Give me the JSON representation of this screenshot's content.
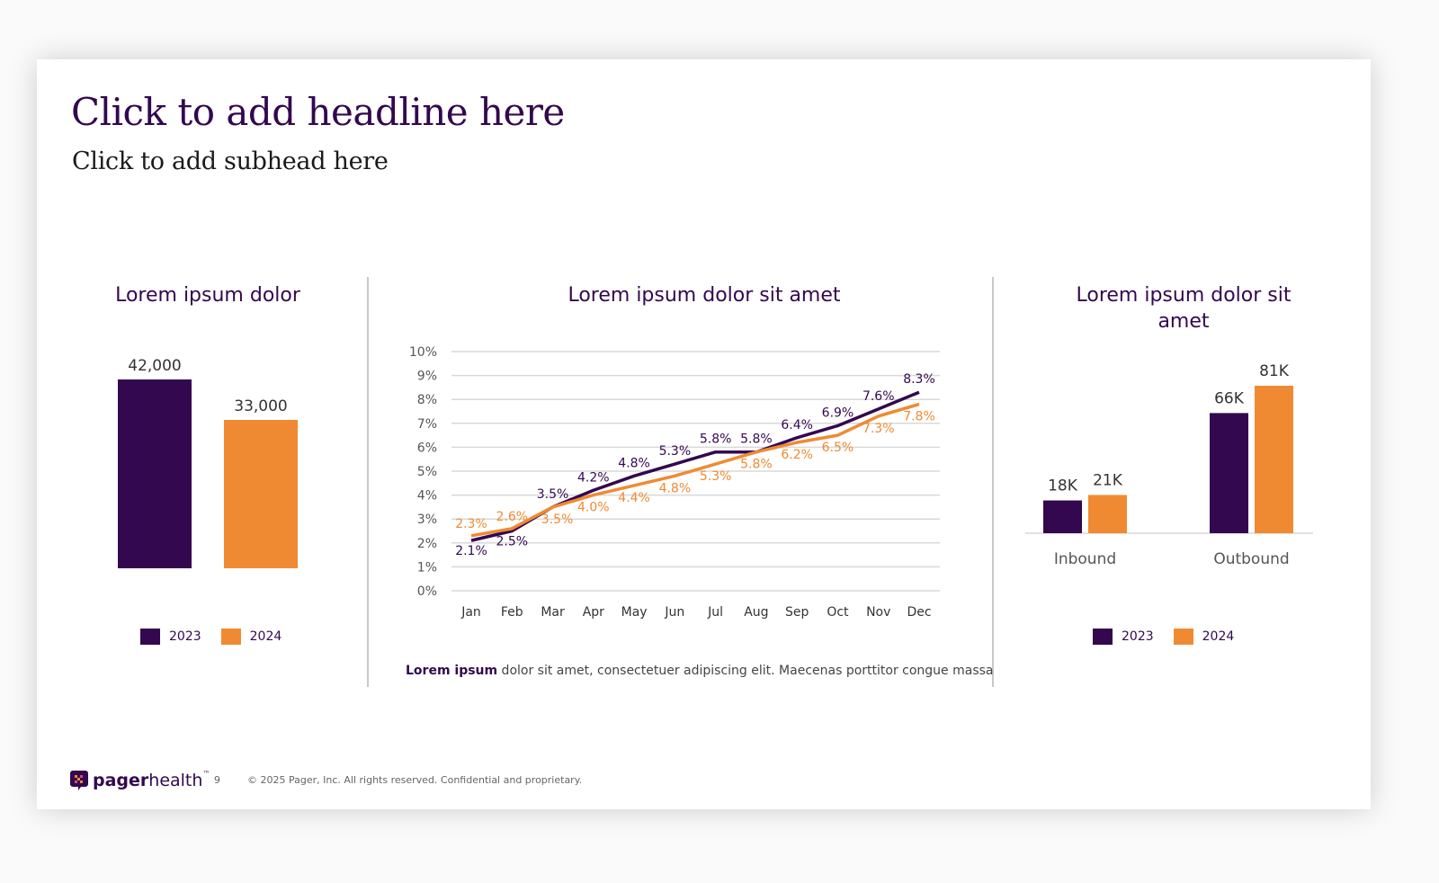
{
  "headline": "Click to add headline here",
  "subhead": "Click to add subhead here",
  "colors": {
    "series_2023": "#33084f",
    "series_2024": "#f08a32",
    "title": "#33084f"
  },
  "footer": {
    "logo_text_bold": "pager",
    "logo_text_light": "health",
    "logo_tm": "™",
    "page_number": "9",
    "copyright": "© 2025 Pager, Inc. All rights reserved. Confidential and proprietary."
  },
  "chart_data": [
    {
      "type": "bar",
      "title": "Lorem ipsum dolor",
      "categories": [
        "2023",
        "2024"
      ],
      "values": [
        42000,
        33000
      ],
      "data_labels": [
        "42,000",
        "33,000"
      ],
      "legend": [
        "2023",
        "2024"
      ],
      "legend_position": "bottom"
    },
    {
      "type": "line",
      "title": "Lorem ipsum dolor sit amet",
      "categories": [
        "Jan",
        "Feb",
        "Mar",
        "Apr",
        "May",
        "Jun",
        "Jul",
        "Aug",
        "Sep",
        "Oct",
        "Nov",
        "Dec"
      ],
      "ylim": [
        0,
        10
      ],
      "yticks": [
        "0%",
        "1%",
        "2%",
        "3%",
        "4%",
        "5%",
        "6%",
        "7%",
        "8%",
        "9%",
        "10%"
      ],
      "grid": true,
      "series": [
        {
          "values": [
            2.1,
            2.5,
            3.5,
            4.2,
            4.8,
            5.3,
            5.8,
            5.8,
            6.4,
            6.9,
            7.6,
            8.3
          ],
          "labels": [
            "2.1%",
            "2.5%",
            "3.5%",
            "4.2%",
            "4.8%",
            "5.3%",
            "5.8%",
            "5.8%",
            "6.4%",
            "6.9%",
            "7.6%",
            "8.3%"
          ]
        },
        {
          "values": [
            2.3,
            2.6,
            3.5,
            4.0,
            4.4,
            4.8,
            5.3,
            5.8,
            6.2,
            6.5,
            7.3,
            7.8
          ],
          "labels": [
            "2.3%",
            "2.6%",
            "3.5%",
            "4.0%",
            "4.4%",
            "4.8%",
            "5.3%",
            "5.8%",
            "6.2%",
            "6.5%",
            "7.3%",
            "7.8%"
          ]
        }
      ],
      "note_bold": "Lorem ipsum",
      "note_text": " dolor sit amet, consectetuer adipiscing elit. Maecenas porttitor congue massa"
    },
    {
      "type": "bar",
      "title": "Lorem ipsum dolor sit amet",
      "categories": [
        "Inbound",
        "Outbound"
      ],
      "series": [
        {
          "name": "2023",
          "values": [
            18,
            66
          ],
          "labels": [
            "18K",
            "66K"
          ]
        },
        {
          "name": "2024",
          "values": [
            21,
            81
          ],
          "labels": [
            "21K",
            "81K"
          ]
        }
      ],
      "legend": [
        "2023",
        "2024"
      ],
      "legend_position": "bottom"
    }
  ]
}
